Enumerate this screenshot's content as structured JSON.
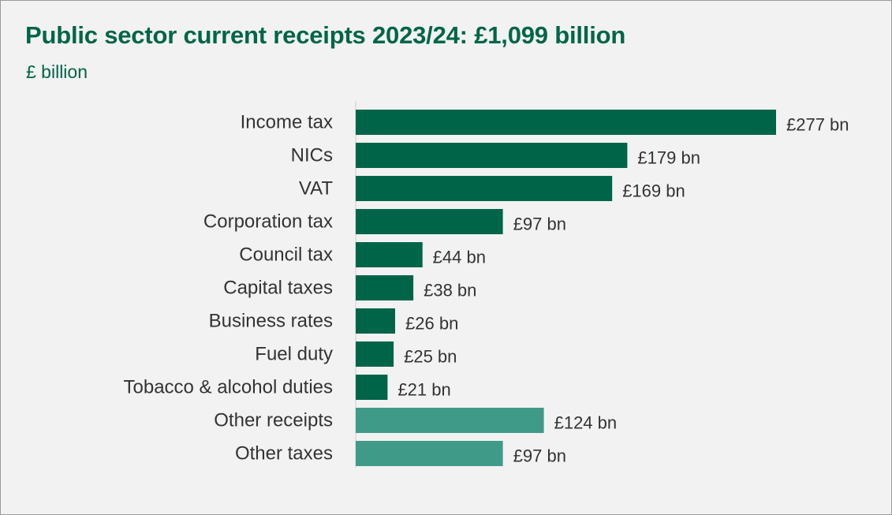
{
  "title": "Public sector current receipts 2023/24: £1,099 billion",
  "subtitle": "£ billion",
  "colors": {
    "primary": "#006548",
    "secondary": "#3f9b88",
    "axis": "#cfcfcf"
  },
  "chart_data": {
    "type": "bar",
    "orientation": "horizontal",
    "title": "Public sector current receipts 2023/24: £1,099 billion",
    "subtitle": "£ billion",
    "grid": false,
    "legend": "none",
    "xlim": [
      0,
      277
    ],
    "categories": [
      "Income tax",
      "NICs",
      "VAT",
      "Corporation tax",
      "Council tax",
      "Capital taxes",
      "Business rates",
      "Fuel duty",
      "Tobacco & alcohol duties",
      "Other receipts",
      "Other taxes"
    ],
    "values": [
      277,
      179,
      169,
      97,
      44,
      38,
      26,
      25,
      21,
      124,
      97
    ],
    "value_labels": [
      "£277 bn",
      "£179 bn",
      "£169 bn",
      "£97 bn",
      "£44 bn",
      "£38 bn",
      "£26 bn",
      "£25 bn",
      "£21 bn",
      "£124 bn",
      "£97 bn"
    ],
    "bar_colors": [
      "#006548",
      "#006548",
      "#006548",
      "#006548",
      "#006548",
      "#006548",
      "#006548",
      "#006548",
      "#006548",
      "#3f9b88",
      "#3f9b88"
    ]
  }
}
